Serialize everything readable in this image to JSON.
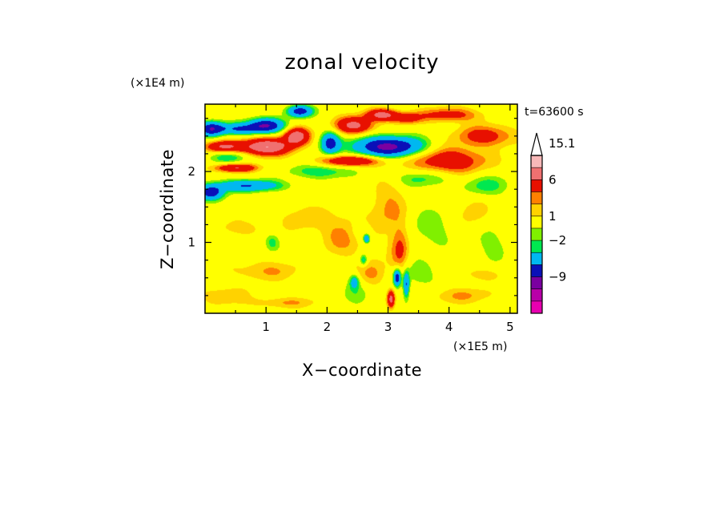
{
  "chart_data": {
    "type": "heatmap",
    "title": "zonal velocity",
    "xlabel": "X−coordinate",
    "ylabel": "Z−coordinate",
    "x_unit": "(×1E5 m)",
    "y_unit": "(×1E4 m)",
    "time_label": "t=63600 s",
    "xlim": [
      0,
      5.12
    ],
    "ylim": [
      0,
      2.95
    ],
    "x_ticks": [
      {
        "value": 1,
        "label": "1"
      },
      {
        "value": 2,
        "label": "2"
      },
      {
        "value": 3,
        "label": "3"
      },
      {
        "value": 4,
        "label": "4"
      },
      {
        "value": 5,
        "label": "5"
      }
    ],
    "y_ticks": [
      {
        "value": 1,
        "label": "1"
      },
      {
        "value": 2,
        "label": "2"
      }
    ],
    "colorbar": {
      "levels": [
        -18,
        -15,
        -12,
        -9,
        -6,
        -3,
        -2,
        -1,
        1,
        2,
        3,
        6,
        9,
        12,
        15.1
      ],
      "colors": [
        "#e800b0",
        "#b800a8",
        "#7a00a0",
        "#0a10b8",
        "#00b8f0",
        "#00e850",
        "#80f000",
        "#ffff00",
        "#ffd200",
        "#ff8000",
        "#e81000",
        "#f07070",
        "#f8b8b8"
      ],
      "labels": [
        {
          "value": 15.1,
          "label": "15.1"
        },
        {
          "value": 6,
          "label": "6"
        },
        {
          "value": 1,
          "label": "1"
        },
        {
          "value": -2,
          "label": "−2"
        },
        {
          "value": -9,
          "label": "−9"
        }
      ]
    },
    "features": [
      {
        "x": 1.0,
        "z": 2.65,
        "sx": 0.28,
        "sz": 0.1,
        "u": -9
      },
      {
        "x": 0.55,
        "z": 2.6,
        "sx": 0.35,
        "sz": 0.08,
        "u": -6
      },
      {
        "x": 0.1,
        "z": 2.6,
        "sx": 0.2,
        "sz": 0.1,
        "u": -8
      },
      {
        "x": 1.55,
        "z": 2.85,
        "sx": 0.2,
        "sz": 0.08,
        "u": -8
      },
      {
        "x": 3.0,
        "z": 2.35,
        "sx": 0.55,
        "sz": 0.14,
        "u": -10
      },
      {
        "x": 2.05,
        "z": 2.4,
        "sx": 0.15,
        "sz": 0.15,
        "u": -7
      },
      {
        "x": 0.7,
        "z": 1.8,
        "sx": 0.55,
        "sz": 0.08,
        "u": -6
      },
      {
        "x": 0.1,
        "z": 1.7,
        "sx": 0.2,
        "sz": 0.1,
        "u": -8
      },
      {
        "x": 0.4,
        "z": 2.2,
        "sx": 0.3,
        "sz": 0.08,
        "u": -3
      },
      {
        "x": 1.9,
        "z": 2.0,
        "sx": 0.5,
        "sz": 0.1,
        "u": -3
      },
      {
        "x": 1.0,
        "z": 2.35,
        "sx": 0.4,
        "sz": 0.12,
        "u": 9
      },
      {
        "x": 0.3,
        "z": 2.35,
        "sx": 0.3,
        "sz": 0.08,
        "u": 6
      },
      {
        "x": 1.5,
        "z": 2.5,
        "sx": 0.2,
        "sz": 0.12,
        "u": 8
      },
      {
        "x": 2.45,
        "z": 2.65,
        "sx": 0.3,
        "sz": 0.12,
        "u": 7
      },
      {
        "x": 2.4,
        "z": 2.15,
        "sx": 0.5,
        "sz": 0.08,
        "u": 6
      },
      {
        "x": 3.3,
        "z": 2.75,
        "sx": 0.25,
        "sz": 0.08,
        "u": 4
      },
      {
        "x": 2.9,
        "z": 2.8,
        "sx": 0.25,
        "sz": 0.08,
        "u": 7
      },
      {
        "x": 0.5,
        "z": 2.05,
        "sx": 0.35,
        "sz": 0.06,
        "u": 6
      },
      {
        "x": 4.6,
        "z": 2.5,
        "sx": 0.5,
        "sz": 0.15,
        "u": 4
      },
      {
        "x": 4.0,
        "z": 2.15,
        "sx": 0.6,
        "sz": 0.18,
        "u": 5
      },
      {
        "x": 4.0,
        "z": 2.8,
        "sx": 0.5,
        "sz": 0.1,
        "u": 4
      },
      {
        "x": 3.55,
        "z": 1.9,
        "sx": 0.45,
        "sz": 0.12,
        "u": -2.5
      },
      {
        "x": 4.6,
        "z": 1.8,
        "sx": 0.4,
        "sz": 0.15,
        "u": -2.5
      },
      {
        "x": 1.1,
        "z": 1.0,
        "sx": 0.12,
        "sz": 0.12,
        "u": -2.5
      },
      {
        "x": 2.55,
        "z": 1.15,
        "sx": 0.2,
        "sz": 0.15,
        "u": -1.8
      },
      {
        "x": 4.7,
        "z": 1.0,
        "sx": 0.3,
        "sz": 0.3,
        "u": -1.5
      },
      {
        "x": 3.7,
        "z": 1.2,
        "sx": 0.4,
        "sz": 0.3,
        "u": -1.6
      },
      {
        "x": 2.3,
        "z": 1.1,
        "sx": 0.4,
        "sz": 0.3,
        "u": 2.5
      },
      {
        "x": 2.75,
        "z": 0.55,
        "sx": 0.25,
        "sz": 0.2,
        "u": 2.5
      },
      {
        "x": 3.05,
        "z": 0.2,
        "sx": 0.06,
        "sz": 0.12,
        "u": 7
      },
      {
        "x": 3.15,
        "z": 0.5,
        "sx": 0.06,
        "sz": 0.12,
        "u": -8
      },
      {
        "x": 3.3,
        "z": 0.4,
        "sx": 0.05,
        "sz": 0.18,
        "u": -6
      },
      {
        "x": 2.45,
        "z": 0.45,
        "sx": 0.08,
        "sz": 0.1,
        "u": -4
      },
      {
        "x": 2.6,
        "z": 0.75,
        "sx": 0.06,
        "sz": 0.08,
        "u": -4
      },
      {
        "x": 2.65,
        "z": 1.05,
        "sx": 0.05,
        "sz": 0.06,
        "u": -6
      },
      {
        "x": 2.5,
        "z": 0.3,
        "sx": 0.25,
        "sz": 0.2,
        "u": -1.6
      },
      {
        "x": 3.5,
        "z": 0.55,
        "sx": 0.4,
        "sz": 0.2,
        "u": -1.6
      },
      {
        "x": 1.0,
        "z": 0.6,
        "sx": 0.6,
        "sz": 0.15,
        "u": 2
      },
      {
        "x": 0.3,
        "z": 0.25,
        "sx": 0.4,
        "sz": 0.12,
        "u": 2
      },
      {
        "x": 1.3,
        "z": 0.15,
        "sx": 0.6,
        "sz": 0.08,
        "u": 2
      },
      {
        "x": 4.2,
        "z": 0.25,
        "sx": 0.6,
        "sz": 0.12,
        "u": 2
      },
      {
        "x": 4.5,
        "z": 0.55,
        "sx": 0.4,
        "sz": 0.1,
        "u": 1.6
      },
      {
        "x": 1.6,
        "z": 1.35,
        "sx": 0.4,
        "sz": 0.2,
        "u": 1.6
      },
      {
        "x": 3.0,
        "z": 1.5,
        "sx": 0.3,
        "sz": 0.4,
        "u": 2.2
      },
      {
        "x": 4.4,
        "z": 1.4,
        "sx": 0.3,
        "sz": 0.25,
        "u": 1.6
      },
      {
        "x": 0.6,
        "z": 1.2,
        "sx": 0.4,
        "sz": 0.12,
        "u": 1.6
      },
      {
        "x": 3.2,
        "z": 0.9,
        "sx": 0.15,
        "sz": 0.35,
        "u": 3.5
      }
    ]
  }
}
